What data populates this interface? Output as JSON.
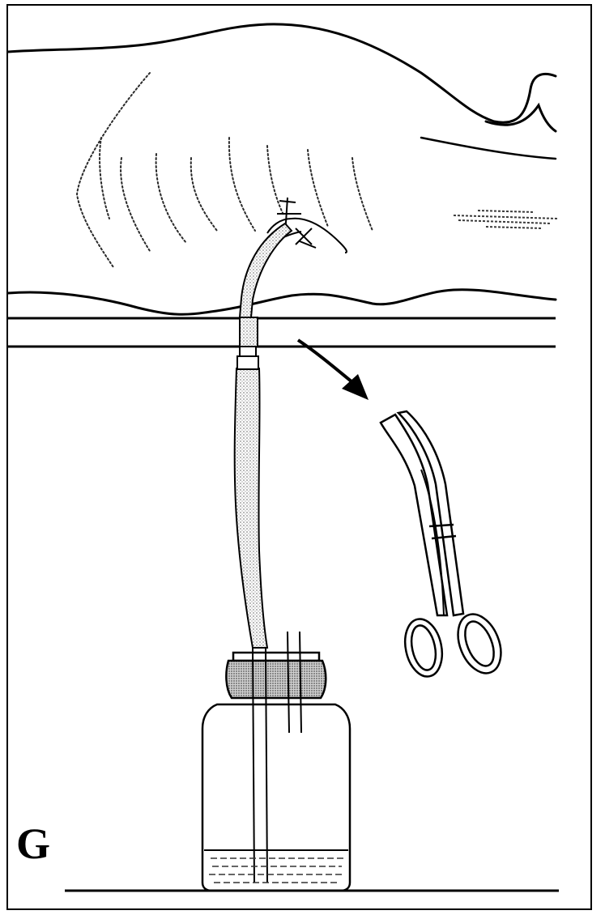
{
  "panel": {
    "label": "G"
  },
  "colors": {
    "ink": "#000000",
    "paper": "#ffffff",
    "stipple": "#bdbdbd",
    "stipple_dark": "#8a8a8a"
  },
  "icons": {
    "figure": "patient-lying-supine",
    "tube": "chest-drain-tube",
    "bottle": "underwater-seal-drainage-bottle",
    "clamp": "artery-forceps",
    "arrow": "curved-arrow"
  }
}
